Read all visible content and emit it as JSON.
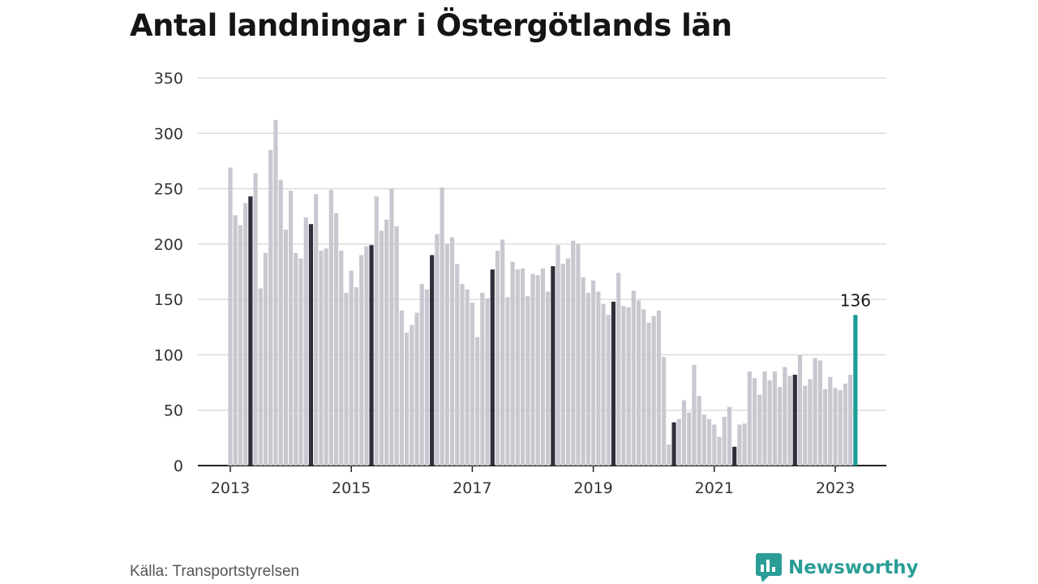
{
  "title": "Antal landningar i Östergötlands län",
  "source": "Källa: Transportstyrelsen",
  "brand": {
    "name": "Newsworthy",
    "icon": "newsworthy-logo-icon",
    "color": "#2a9d96"
  },
  "colors": {
    "bar": "#c8c8d0",
    "highlight": "#30303c",
    "latest": "#1a9e96",
    "grid": "#dddddd",
    "axis": "#222222"
  },
  "chart_data": {
    "type": "bar",
    "title": "Antal landningar i Östergötlands län",
    "xlabel": "",
    "ylabel": "",
    "ylim": [
      0,
      350
    ],
    "yticks": [
      0,
      50,
      100,
      150,
      200,
      250,
      300,
      350
    ],
    "xticks": [
      "2013",
      "2015",
      "2017",
      "2019",
      "2021",
      "2023"
    ],
    "start": "2013-01",
    "grid": true,
    "highlight_month": "May",
    "latest_label": "136",
    "values": [
      269,
      226,
      217,
      237,
      243,
      264,
      160,
      192,
      285,
      312,
      258,
      213,
      248,
      192,
      187,
      224,
      218,
      245,
      194,
      196,
      249,
      228,
      194,
      156,
      176,
      161,
      190,
      198,
      199,
      243,
      212,
      222,
      250,
      216,
      140,
      120,
      127,
      138,
      164,
      159,
      190,
      209,
      251,
      200,
      206,
      182,
      164,
      159,
      147,
      116,
      156,
      151,
      177,
      194,
      204,
      152,
      184,
      177,
      178,
      153,
      173,
      172,
      178,
      157,
      180,
      199,
      182,
      187,
      203,
      200,
      170,
      156,
      167,
      157,
      146,
      136,
      148,
      174,
      144,
      143,
      158,
      149,
      141,
      129,
      135,
      140,
      98,
      19,
      39,
      42,
      59,
      48,
      91,
      63,
      46,
      42,
      37,
      26,
      44,
      53,
      17,
      37,
      38,
      85,
      79,
      64,
      85,
      77,
      85,
      71,
      89,
      81,
      82,
      100,
      72,
      78,
      97,
      95,
      69,
      80,
      70,
      68,
      74,
      82,
      136
    ]
  }
}
